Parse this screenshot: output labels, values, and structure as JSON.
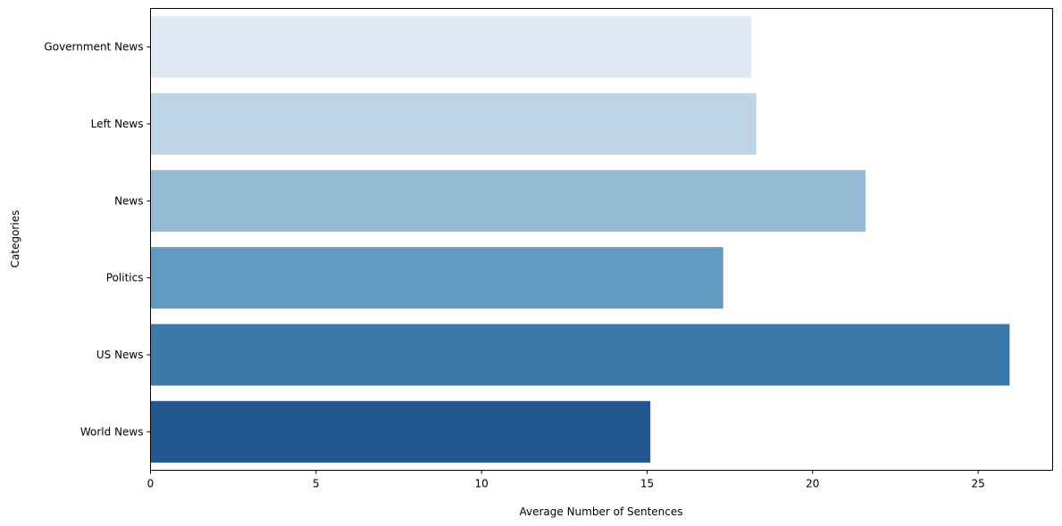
{
  "chart_data": {
    "type": "bar",
    "orientation": "horizontal",
    "categories": [
      "Government News",
      "Left News",
      "News",
      "Politics",
      "US News",
      "World News"
    ],
    "values": [
      18.15,
      18.3,
      21.6,
      17.3,
      25.95,
      15.1
    ],
    "colors": [
      "#dfe8f3",
      "#bfd5e6",
      "#94bbd4",
      "#639bc0",
      "#3b79a9",
      "#21578d"
    ],
    "xlabel": "Average Number of Sentences",
    "ylabel": "Categories",
    "xlim": [
      0,
      27.25
    ],
    "xticks": [
      0,
      5,
      10,
      15,
      20,
      25
    ],
    "grid": false,
    "legend": "none"
  }
}
